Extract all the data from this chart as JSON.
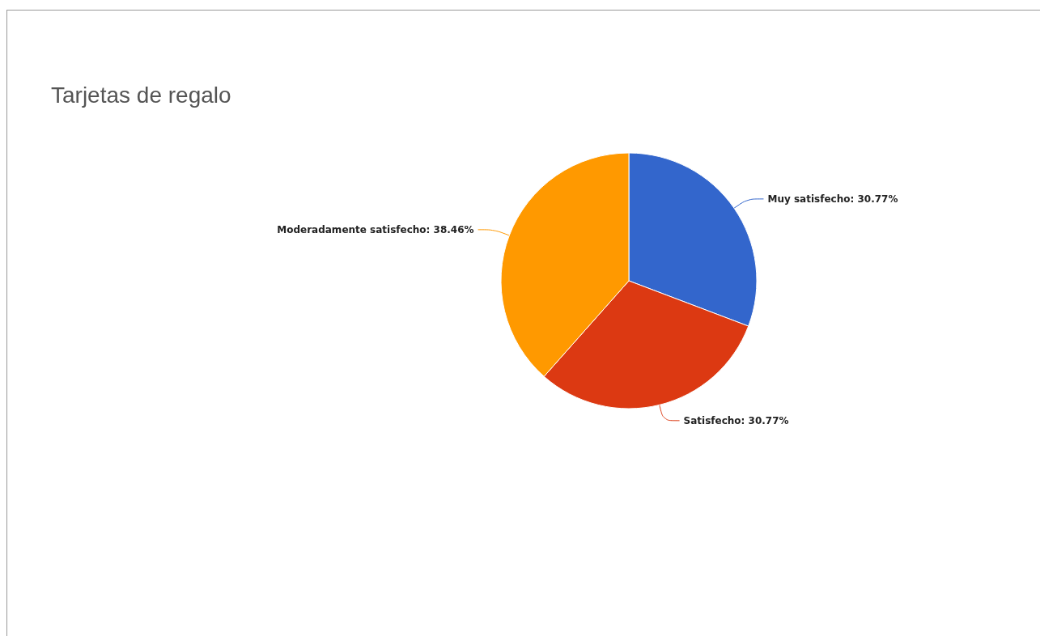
{
  "chart_data": {
    "type": "pie",
    "title": "Tarjetas de regalo",
    "categories": [
      "Muy satisfecho",
      "Satisfecho",
      "Moderadamente satisfecho"
    ],
    "values": [
      30.77,
      30.77,
      38.46
    ],
    "value_labels": [
      "30.77%",
      "30.77%",
      "38.46%"
    ],
    "colors": [
      "#3366cc",
      "#dc3912",
      "#ff9900"
    ],
    "legend": false
  }
}
